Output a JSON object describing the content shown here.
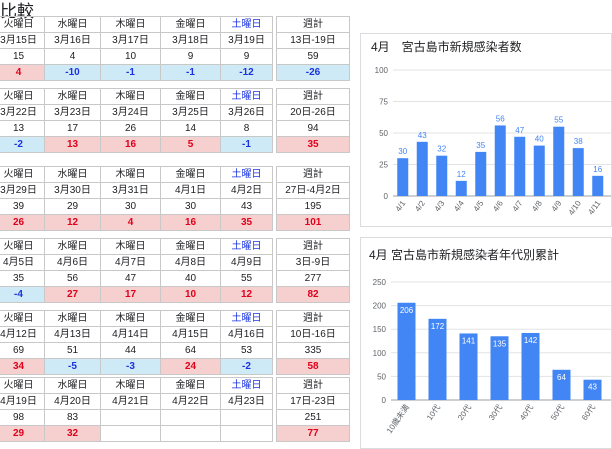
{
  "page": {
    "title": "比較"
  },
  "colors": {
    "bar": "#4285f4",
    "positive_bg": "#f6cfcf",
    "positive_text": "#e0001b",
    "negative_bg": "#cfeaf7",
    "negative_text": "#1a33e0",
    "saturday": "#1a33e0"
  },
  "weeks": [
    {
      "days": [
        {
          "label": "火曜日",
          "date": "3月15日",
          "count": "15",
          "diff": "4",
          "sat": false
        },
        {
          "label": "水曜日",
          "date": "3月16日",
          "count": "4",
          "diff": "-10",
          "sat": false
        },
        {
          "label": "木曜日",
          "date": "3月17日",
          "count": "10",
          "diff": "-1",
          "sat": false
        },
        {
          "label": "金曜日",
          "date": "3月18日",
          "count": "9",
          "diff": "-1",
          "sat": false
        },
        {
          "label": "土曜日",
          "date": "3月19日",
          "count": "9",
          "diff": "-12",
          "sat": true
        }
      ],
      "total": {
        "label": "週計",
        "range": "13日-19日",
        "count": "59",
        "diff": "-26"
      }
    },
    {
      "days": [
        {
          "label": "火曜日",
          "date": "3月22日",
          "count": "13",
          "diff": "-2",
          "sat": false
        },
        {
          "label": "水曜日",
          "date": "3月23日",
          "count": "17",
          "diff": "13",
          "sat": false
        },
        {
          "label": "木曜日",
          "date": "3月24日",
          "count": "26",
          "diff": "16",
          "sat": false
        },
        {
          "label": "金曜日",
          "date": "3月25日",
          "count": "14",
          "diff": "5",
          "sat": false
        },
        {
          "label": "土曜日",
          "date": "3月26日",
          "count": "8",
          "diff": "-1",
          "sat": true
        }
      ],
      "total": {
        "label": "週計",
        "range": "20日-26日",
        "count": "94",
        "diff": "35"
      }
    },
    {
      "days": [
        {
          "label": "火曜日",
          "date": "3月29日",
          "count": "39",
          "diff": "26",
          "sat": false
        },
        {
          "label": "水曜日",
          "date": "3月30日",
          "count": "29",
          "diff": "12",
          "sat": false
        },
        {
          "label": "木曜日",
          "date": "3月31日",
          "count": "30",
          "diff": "4",
          "sat": false
        },
        {
          "label": "金曜日",
          "date": "4月1日",
          "count": "30",
          "diff": "16",
          "sat": false
        },
        {
          "label": "土曜日",
          "date": "4月2日",
          "count": "43",
          "diff": "35",
          "sat": true
        }
      ],
      "total": {
        "label": "週計",
        "range": "27日-4月2日",
        "count": "195",
        "diff": "101"
      }
    },
    {
      "days": [
        {
          "label": "火曜日",
          "date": "4月5日",
          "count": "35",
          "diff": "-4",
          "sat": false
        },
        {
          "label": "水曜日",
          "date": "4月6日",
          "count": "56",
          "diff": "27",
          "sat": false
        },
        {
          "label": "木曜日",
          "date": "4月7日",
          "count": "47",
          "diff": "17",
          "sat": false
        },
        {
          "label": "金曜日",
          "date": "4月8日",
          "count": "40",
          "diff": "10",
          "sat": false
        },
        {
          "label": "土曜日",
          "date": "4月9日",
          "count": "55",
          "diff": "12",
          "sat": true
        }
      ],
      "total": {
        "label": "週計",
        "range": "3日-9日",
        "count": "277",
        "diff": "82"
      }
    },
    {
      "days": [
        {
          "label": "火曜日",
          "date": "4月12日",
          "count": "69",
          "diff": "34",
          "sat": false
        },
        {
          "label": "水曜日",
          "date": "4月13日",
          "count": "51",
          "diff": "-5",
          "sat": false
        },
        {
          "label": "木曜日",
          "date": "4月14日",
          "count": "44",
          "diff": "-3",
          "sat": false
        },
        {
          "label": "金曜日",
          "date": "4月15日",
          "count": "64",
          "diff": "24",
          "sat": false
        },
        {
          "label": "土曜日",
          "date": "4月16日",
          "count": "53",
          "diff": "-2",
          "sat": true
        }
      ],
      "total": {
        "label": "週計",
        "range": "10日-16日",
        "count": "335",
        "diff": "58"
      }
    },
    {
      "days": [
        {
          "label": "火曜日",
          "date": "4月19日",
          "count": "98",
          "diff": "29",
          "sat": false
        },
        {
          "label": "水曜日",
          "date": "4月20日",
          "count": "83",
          "diff": "32",
          "sat": false
        },
        {
          "label": "木曜日",
          "date": "4月21日",
          "count": "",
          "diff": "",
          "sat": false
        },
        {
          "label": "金曜日",
          "date": "4月22日",
          "count": "",
          "diff": "",
          "sat": false
        },
        {
          "label": "土曜日",
          "date": "4月23日",
          "count": "",
          "diff": "",
          "sat": true
        }
      ],
      "total": {
        "label": "週計",
        "range": "17日-23日",
        "count": "251",
        "diff": "77"
      }
    }
  ],
  "chart_data": [
    {
      "type": "bar",
      "title": "4月　宮古島市新規感染者数",
      "categories": [
        "4/1",
        "4/2",
        "4/3",
        "4/4",
        "4/5",
        "4/6",
        "4/7",
        "4/8",
        "4/9",
        "4/10",
        "4/11"
      ],
      "values": [
        30,
        43,
        32,
        12,
        35,
        56,
        47,
        40,
        55,
        38,
        16
      ],
      "ylim": [
        0,
        100
      ],
      "yticks": [
        0,
        25,
        50,
        75,
        100
      ],
      "grid": true,
      "legend": "none",
      "color": "#4285f4"
    },
    {
      "type": "bar",
      "title": "4月 宮古島市新規感染者年代別累計",
      "categories": [
        "10歳未満",
        "10代",
        "20代",
        "30代",
        "40代",
        "50代",
        "60代"
      ],
      "values": [
        206,
        172,
        141,
        135,
        142,
        64,
        43
      ],
      "ylim": [
        0,
        250
      ],
      "yticks": [
        0,
        50,
        100,
        150,
        200,
        250
      ],
      "grid": true,
      "legend": "none",
      "color": "#4285f4"
    }
  ]
}
